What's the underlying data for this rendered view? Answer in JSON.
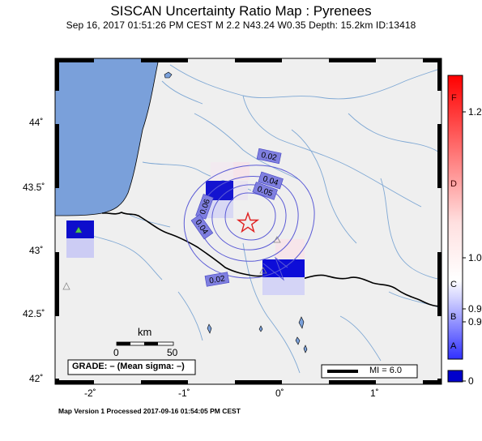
{
  "header": {
    "title": "SISCAN Uncertainty Ratio Map : Pyrenees",
    "subtitle": "Sep 16, 2017 01:51:26 PM CEST   M 2.2   N43.24 W0.35   Depth: 15.2km   ID:13418"
  },
  "axes": {
    "y_ticks": [
      "44˚",
      "43.5˚",
      "43˚",
      "42.5˚",
      "42˚"
    ],
    "x_ticks": [
      "-2˚",
      "-1˚",
      "0˚",
      "1˚"
    ]
  },
  "contours": [
    "0.02",
    "0.04",
    "0.05",
    "0.06",
    "0.04",
    "0.02"
  ],
  "scalebar": {
    "title": "km",
    "min": "0",
    "max": "50"
  },
  "grade": "GRADE: – (Mean sigma: –)",
  "mi_legend": "MI = 6.0",
  "colorbar": {
    "letters": [
      "F",
      "D",
      "C",
      "B",
      "A"
    ],
    "values": [
      "1.2",
      "1.0",
      "0.9",
      "0.9",
      "0"
    ],
    "colors": {
      "top": "#ff0000",
      "mid": "#ffffff",
      "low": "#0000ff",
      "bottom": "#0000cc"
    }
  },
  "footer": "Map Version 1 Processed 2017-09-16 01:54:05 PM CEST",
  "colors": {
    "land": "#efefef",
    "sea": "#7aa0da",
    "river": "#7fa8d4",
    "border": "#000000",
    "contour": "#5b5bd6",
    "epicenter": "#e02020"
  }
}
